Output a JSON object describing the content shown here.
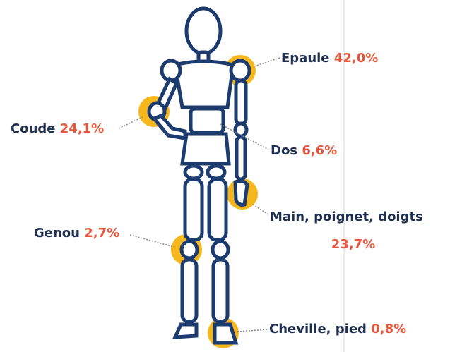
{
  "annotations": [
    {
      "label": "Epaule",
      "value": "42,0%"
    },
    {
      "label": "Coude",
      "value": "24,1%"
    },
    {
      "label": "Dos",
      "value": "6,6%"
    },
    {
      "label": "Main, poignet, doigts",
      "value": "23,7%"
    },
    {
      "label": "Genou",
      "value": "2,7%"
    },
    {
      "label": "Cheville, pied",
      "value": "0,8%"
    }
  ]
}
